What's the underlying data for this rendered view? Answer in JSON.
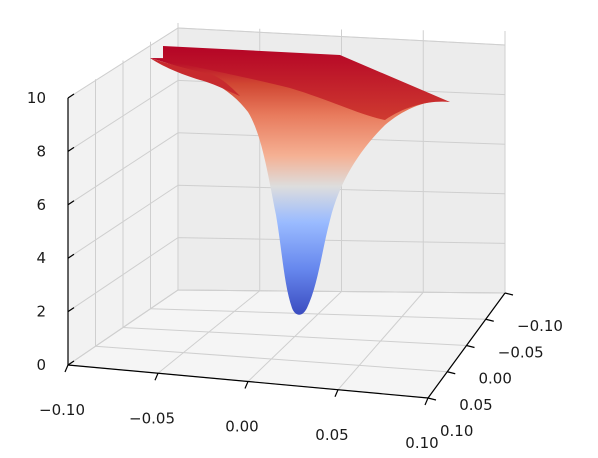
{
  "chart_data": {
    "type": "surface3d",
    "title": "",
    "xlabel": "",
    "ylabel": "",
    "zlabel": "",
    "colormap": "coolwarm",
    "colors": {
      "low": "#3b4cc0",
      "mid": "#dddddd",
      "high": "#b40426"
    },
    "xlim": [
      -0.1,
      0.1
    ],
    "ylim": [
      -0.1,
      0.1
    ],
    "zlim": [
      0,
      10
    ],
    "x_ticks": [
      "-0.10",
      "-0.05",
      "0.00",
      "0.05",
      "0.10"
    ],
    "y_ticks": [
      "-0.10",
      "-0.05",
      "0.00",
      "0.05",
      "0.10"
    ],
    "z_ticks": [
      "0",
      "2",
      "4",
      "6",
      "8",
      "10"
    ],
    "surface": {
      "shape": "inverted gaussian well",
      "min_value": 1.8,
      "max_value": 10,
      "center": [
        0.0,
        0.0
      ]
    },
    "grid": true
  }
}
